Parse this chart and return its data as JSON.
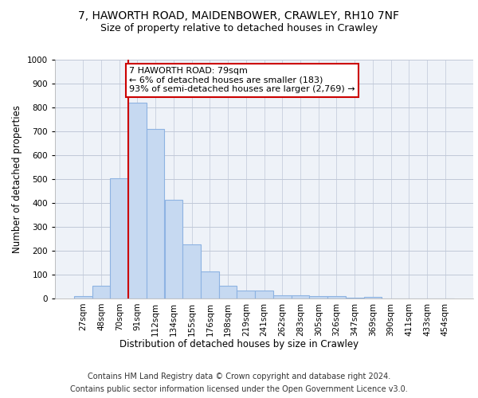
{
  "title_line1": "7, HAWORTH ROAD, MAIDENBOWER, CRAWLEY, RH10 7NF",
  "title_line2": "Size of property relative to detached houses in Crawley",
  "xlabel": "Distribution of detached houses by size in Crawley",
  "ylabel": "Number of detached properties",
  "footer_line1": "Contains HM Land Registry data © Crown copyright and database right 2024.",
  "footer_line2": "Contains public sector information licensed under the Open Government Licence v3.0.",
  "annotation_line1": "7 HAWORTH ROAD: 79sqm",
  "annotation_line2": "← 6% of detached houses are smaller (183)",
  "annotation_line3": "93% of semi-detached houses are larger (2,769) →",
  "categories": [
    "27sqm",
    "48sqm",
    "70sqm",
    "91sqm",
    "112sqm",
    "134sqm",
    "155sqm",
    "176sqm",
    "198sqm",
    "219sqm",
    "241sqm",
    "262sqm",
    "283sqm",
    "305sqm",
    "326sqm",
    "347sqm",
    "369sqm",
    "390sqm",
    "411sqm",
    "433sqm",
    "454sqm"
  ],
  "values": [
    10,
    55,
    505,
    820,
    710,
    415,
    228,
    115,
    55,
    32,
    32,
    12,
    12,
    10,
    10,
    3,
    8,
    0,
    0,
    0,
    0
  ],
  "bar_color": "#c6d9f1",
  "bar_edge_color": "#8db3e2",
  "bar_linewidth": 0.8,
  "redline_x": 2.5,
  "redline_color": "#cc0000",
  "ylim": [
    0,
    1000
  ],
  "yticks": [
    0,
    100,
    200,
    300,
    400,
    500,
    600,
    700,
    800,
    900,
    1000
  ],
  "grid_color": "#c0c8d8",
  "bg_color": "#eef2f8",
  "annotation_box_color": "#cc0000",
  "title_fontsize": 10,
  "subtitle_fontsize": 9,
  "axis_label_fontsize": 8.5,
  "tick_fontsize": 7.5,
  "footer_fontsize": 7,
  "annotation_fontsize": 8
}
